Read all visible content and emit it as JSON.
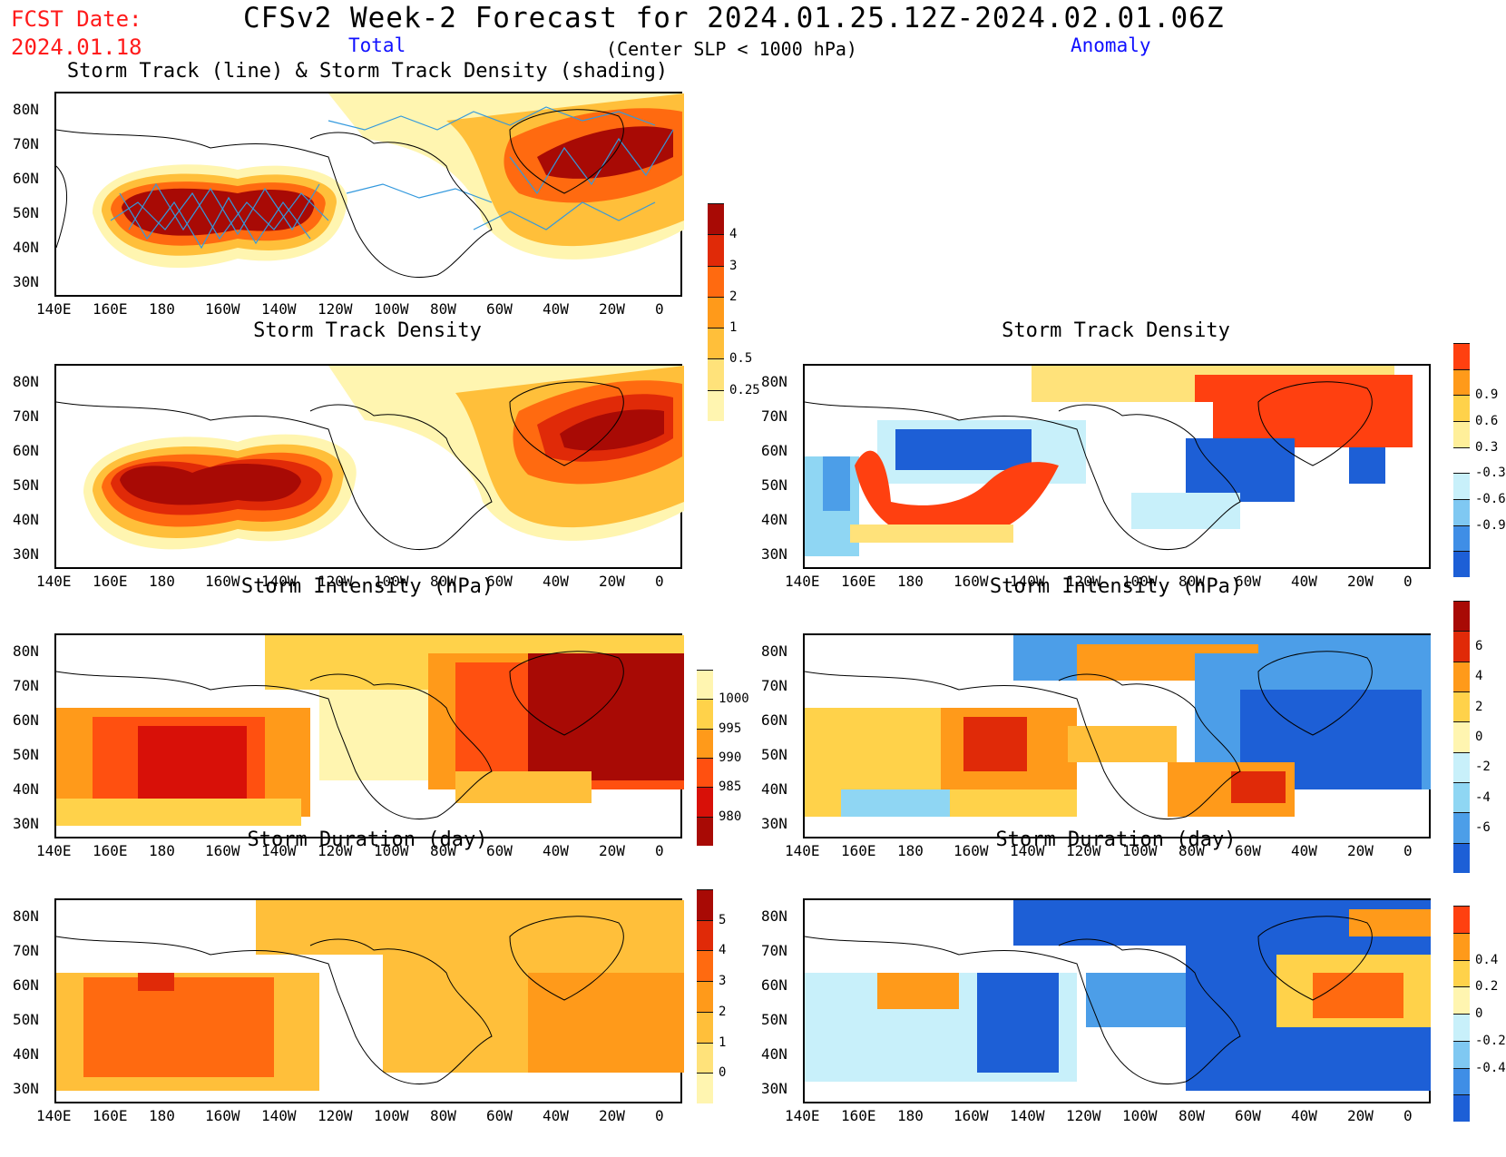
{
  "header": {
    "fcst_label": "FCST Date:",
    "fcst_date": "2024.01.18",
    "title": "CFSv2 Week-2 Forecast for 2024.01.25.12Z-2024.02.01.06Z",
    "total_label": "Total",
    "condition": "(Center SLP < 1000 hPa)",
    "anomaly_label": "Anomaly"
  },
  "axes": {
    "lat_labels": [
      "80N",
      "70N",
      "60N",
      "50N",
      "40N",
      "30N"
    ],
    "lon_labels": [
      "140E",
      "160E",
      "180",
      "160W",
      "140W",
      "120W",
      "100W",
      "80W",
      "60W",
      "40W",
      "20W",
      "0"
    ]
  },
  "colors": {
    "land_outline": "#000000",
    "track_line": "#3399dd",
    "warm": [
      "#fff5b0",
      "#ffe27a",
      "#ffbf3a",
      "#ff9a1a",
      "#ff6a10",
      "#e02a08",
      "#a80a05"
    ],
    "cool": [
      "#c8f0fa",
      "#8fd6f3",
      "#4c9ee8",
      "#1d5fd6"
    ]
  },
  "panels": [
    {
      "id": "total-track",
      "title": "Storm Track (line) & Storm Track Density (shading)"
    },
    {
      "id": "total-density",
      "title": "Storm Track Density"
    },
    {
      "id": "anom-density",
      "title": "Storm Track Density"
    },
    {
      "id": "total-intensity",
      "title": "Storm Intensity (hPa)"
    },
    {
      "id": "anom-intensity",
      "title": "Storm Intensity (hPa)"
    },
    {
      "id": "total-duration",
      "title": "Storm Duration (day)"
    },
    {
      "id": "anom-duration",
      "title": "Storm Duration (day)"
    }
  ],
  "colorbars": {
    "density_total": {
      "labels": [
        "4",
        "3",
        "2",
        "1",
        "0.5",
        "0.25"
      ],
      "colors": [
        "#a80a05",
        "#e02a08",
        "#ff6a10",
        "#ff9a1a",
        "#ffbf3a",
        "#ffe27a",
        "#fff5b0"
      ]
    },
    "density_anom": {
      "labels": [
        "0.9",
        "0.6",
        "0.3",
        "-0.3",
        "-0.6",
        "-0.9"
      ],
      "colors": [
        "#ff4010",
        "#ff9a1a",
        "#ffd24a",
        "#ffef9a",
        "#ffffff",
        "#c8f0fa",
        "#7fc8f2",
        "#3f8ee6",
        "#1d5fd6"
      ]
    },
    "intensity_total": {
      "labels": [
        "1000",
        "995",
        "990",
        "985",
        "980"
      ],
      "colors": [
        "#fff5b0",
        "#ffd24a",
        "#ff9a1a",
        "#ff5010",
        "#d81008",
        "#a80a05"
      ]
    },
    "intensity_anom": {
      "labels": [
        "6",
        "4",
        "2",
        "0",
        "-2",
        "-4",
        "-6"
      ],
      "colors": [
        "#a80a05",
        "#e02a08",
        "#ff9a1a",
        "#ffd24a",
        "#fff5b0",
        "#c8f0fa",
        "#8fd6f3",
        "#4c9ee8",
        "#1d5fd6"
      ]
    },
    "duration_total": {
      "labels": [
        "5",
        "4",
        "3",
        "2",
        "1",
        "0"
      ],
      "colors": [
        "#a80a05",
        "#e02a08",
        "#ff6a10",
        "#ff9a1a",
        "#ffbf3a",
        "#ffe27a",
        "#fff5b0"
      ]
    },
    "duration_anom": {
      "labels": [
        "0.4",
        "0.2",
        "0",
        "-0.2",
        "-0.4"
      ],
      "colors": [
        "#ff4010",
        "#ff9a1a",
        "#ffd24a",
        "#fff5b0",
        "#c8f0fa",
        "#7fc8f2",
        "#3f8ee6",
        "#1d5fd6"
      ]
    }
  }
}
